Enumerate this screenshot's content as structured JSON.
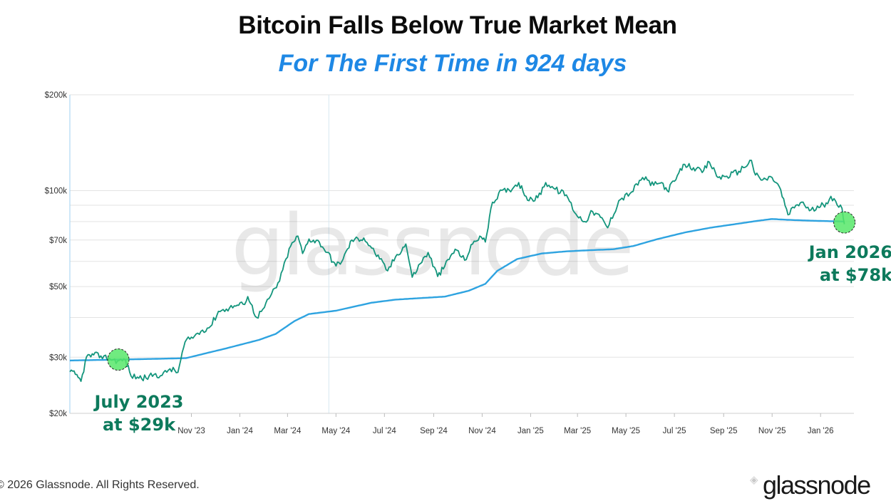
{
  "title": "Bitcoin Falls Below True Market Mean",
  "subtitle": "For The First Time in 924 days",
  "watermark": "glassnode",
  "footer": "© 2026 Glassnode. All Rights Reserved.",
  "brand": "glassnode",
  "ghost_mark": "◈",
  "annotations": {
    "left": {
      "line1": "July 2023",
      "line2": "at $29k"
    },
    "right": {
      "line1": "Jan 2026",
      "line2": "at $78k"
    }
  },
  "colors": {
    "price": "#13957c",
    "mean": "#2ea3e0",
    "highlight": "#57e86a",
    "annotation": "#0d7a5c",
    "grid": "#e3e3e3"
  },
  "chart_data": {
    "type": "line",
    "y_scale": "log",
    "ylim": [
      20000,
      200000
    ],
    "xlim": [
      "2023-06-01",
      "2026-02-12"
    ],
    "y_ticks": [
      {
        "value": 200000,
        "label": "$200k"
      },
      {
        "value": 100000,
        "label": "$100k"
      },
      {
        "value": 70000,
        "label": "$70k"
      },
      {
        "value": 50000,
        "label": "$50k"
      },
      {
        "value": 30000,
        "label": "$30k"
      },
      {
        "value": 20000,
        "label": "$20k"
      }
    ],
    "x_ticks": [
      {
        "date": "2023-11-01",
        "label": "Nov '23"
      },
      {
        "date": "2024-01-01",
        "label": "Jan '24"
      },
      {
        "date": "2024-03-01",
        "label": "Mar '24"
      },
      {
        "date": "2024-05-01",
        "label": "May '24"
      },
      {
        "date": "2024-07-01",
        "label": "Jul '24"
      },
      {
        "date": "2024-09-01",
        "label": "Sep '24"
      },
      {
        "date": "2024-11-01",
        "label": "Nov '24"
      },
      {
        "date": "2025-01-01",
        "label": "Jan '25"
      },
      {
        "date": "2025-03-01",
        "label": "Mar '25"
      },
      {
        "date": "2025-05-01",
        "label": "May '25"
      },
      {
        "date": "2025-07-01",
        "label": "Jul '25"
      },
      {
        "date": "2025-09-01",
        "label": "Sep '25"
      },
      {
        "date": "2025-11-01",
        "label": "Nov '25"
      },
      {
        "date": "2026-01-01",
        "label": "Jan '26"
      }
    ],
    "series": [
      {
        "key": "price",
        "points": [
          [
            "2023-06-01",
            27000
          ],
          [
            "2023-06-08",
            26500
          ],
          [
            "2023-06-15",
            25200
          ],
          [
            "2023-06-22",
            30100
          ],
          [
            "2023-07-01",
            30500
          ],
          [
            "2023-07-10",
            30300
          ],
          [
            "2023-07-20",
            29800
          ],
          [
            "2023-07-31",
            29200
          ],
          [
            "2023-08-10",
            29400
          ],
          [
            "2023-08-17",
            26200
          ],
          [
            "2023-08-25",
            26000
          ],
          [
            "2023-09-05",
            25800
          ],
          [
            "2023-09-15",
            26500
          ],
          [
            "2023-09-25",
            26300
          ],
          [
            "2023-10-05",
            27600
          ],
          [
            "2023-10-15",
            26900
          ],
          [
            "2023-10-24",
            33500
          ],
          [
            "2023-11-05",
            35000
          ],
          [
            "2023-11-15",
            36500
          ],
          [
            "2023-11-25",
            37500
          ],
          [
            "2023-12-05",
            41800
          ],
          [
            "2023-12-15",
            42500
          ],
          [
            "2023-12-25",
            43500
          ],
          [
            "2024-01-05",
            44000
          ],
          [
            "2024-01-11",
            46500
          ],
          [
            "2024-01-22",
            40000
          ],
          [
            "2024-02-01",
            43000
          ],
          [
            "2024-02-10",
            47500
          ],
          [
            "2024-02-20",
            52000
          ],
          [
            "2024-02-28",
            61000
          ],
          [
            "2024-03-05",
            67000
          ],
          [
            "2024-03-14",
            72000
          ],
          [
            "2024-03-20",
            63500
          ],
          [
            "2024-03-28",
            70500
          ],
          [
            "2024-04-10",
            69000
          ],
          [
            "2024-04-20",
            64000
          ],
          [
            "2024-05-01",
            58000
          ],
          [
            "2024-05-10",
            61000
          ],
          [
            "2024-05-21",
            70000
          ],
          [
            "2024-06-05",
            71000
          ],
          [
            "2024-06-15",
            66000
          ],
          [
            "2024-06-25",
            61000
          ],
          [
            "2024-07-05",
            56000
          ],
          [
            "2024-07-15",
            62000
          ],
          [
            "2024-07-28",
            68000
          ],
          [
            "2024-08-05",
            53500
          ],
          [
            "2024-08-15",
            59000
          ],
          [
            "2024-08-25",
            64000
          ],
          [
            "2024-09-06",
            53800
          ],
          [
            "2024-09-15",
            58000
          ],
          [
            "2024-09-28",
            65500
          ],
          [
            "2024-10-10",
            60500
          ],
          [
            "2024-10-20",
            68000
          ],
          [
            "2024-10-29",
            72000
          ],
          [
            "2024-11-05",
            69000
          ],
          [
            "2024-11-12",
            88000
          ],
          [
            "2024-11-22",
            98500
          ],
          [
            "2024-12-05",
            100500
          ],
          [
            "2024-12-17",
            106000
          ],
          [
            "2024-12-30",
            93000
          ],
          [
            "2025-01-10",
            95000
          ],
          [
            "2025-01-20",
            106000
          ],
          [
            "2025-02-01",
            101000
          ],
          [
            "2025-02-15",
            97000
          ],
          [
            "2025-02-27",
            84500
          ],
          [
            "2025-03-10",
            80000
          ],
          [
            "2025-03-20",
            86000
          ],
          [
            "2025-03-30",
            82500
          ],
          [
            "2025-04-08",
            76500
          ],
          [
            "2025-04-22",
            93000
          ],
          [
            "2025-05-08",
            99000
          ],
          [
            "2025-05-22",
            110000
          ],
          [
            "2025-06-05",
            104000
          ],
          [
            "2025-06-15",
            106000
          ],
          [
            "2025-06-22",
            100000
          ],
          [
            "2025-07-01",
            107000
          ],
          [
            "2025-07-14",
            121000
          ],
          [
            "2025-07-25",
            118000
          ],
          [
            "2025-08-05",
            114000
          ],
          [
            "2025-08-14",
            123000
          ],
          [
            "2025-08-25",
            110000
          ],
          [
            "2025-09-05",
            111000
          ],
          [
            "2025-09-20",
            115000
          ],
          [
            "2025-10-06",
            124500
          ],
          [
            "2025-10-11",
            112000
          ],
          [
            "2025-10-20",
            108000
          ],
          [
            "2025-11-01",
            110000
          ],
          [
            "2025-11-10",
            103000
          ],
          [
            "2025-11-21",
            84000
          ],
          [
            "2025-12-01",
            90000
          ],
          [
            "2025-12-10",
            92000
          ],
          [
            "2025-12-18",
            86500
          ],
          [
            "2025-12-30",
            88500
          ],
          [
            "2026-01-08",
            91500
          ],
          [
            "2026-01-14",
            96000
          ],
          [
            "2026-01-22",
            90000
          ],
          [
            "2026-01-28",
            88000
          ],
          [
            "2026-01-31",
            78500
          ]
        ]
      },
      {
        "key": "true_market_mean",
        "points": [
          [
            "2023-06-01",
            29300
          ],
          [
            "2023-09-01",
            29600
          ],
          [
            "2023-10-25",
            29800
          ],
          [
            "2023-12-15",
            32000
          ],
          [
            "2024-01-25",
            34000
          ],
          [
            "2024-02-15",
            35500
          ],
          [
            "2024-03-10",
            39000
          ],
          [
            "2024-03-28",
            41000
          ],
          [
            "2024-05-01",
            42000
          ],
          [
            "2024-06-15",
            44500
          ],
          [
            "2024-07-15",
            45500
          ],
          [
            "2024-08-15",
            46000
          ],
          [
            "2024-09-15",
            46500
          ],
          [
            "2024-10-15",
            48500
          ],
          [
            "2024-11-05",
            51000
          ],
          [
            "2024-11-20",
            56000
          ],
          [
            "2024-12-15",
            61000
          ],
          [
            "2025-01-15",
            63500
          ],
          [
            "2025-02-15",
            64500
          ],
          [
            "2025-03-15",
            65000
          ],
          [
            "2025-04-15",
            65500
          ],
          [
            "2025-05-10",
            67000
          ],
          [
            "2025-06-10",
            70500
          ],
          [
            "2025-07-15",
            74000
          ],
          [
            "2025-08-15",
            76500
          ],
          [
            "2025-09-15",
            78500
          ],
          [
            "2025-10-15",
            80500
          ],
          [
            "2025-11-01",
            81500
          ],
          [
            "2025-11-20",
            81000
          ],
          [
            "2025-12-20",
            80500
          ],
          [
            "2026-01-31",
            80000
          ]
        ]
      }
    ],
    "highlights": [
      {
        "date": "2023-08-01",
        "value": 29500
      },
      {
        "date": "2026-01-31",
        "value": 79500
      }
    ],
    "crosshair_date": "2024-04-22",
    "grid": true
  }
}
